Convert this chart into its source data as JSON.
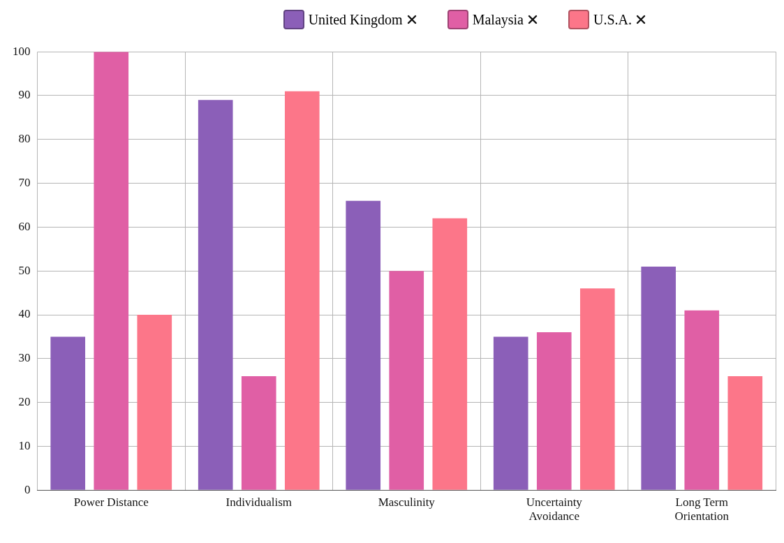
{
  "chart_data": {
    "type": "bar",
    "categories": [
      "Power Distance",
      "Individualism",
      "Masculinity",
      "Uncertainty Avoidance",
      "Long Term Orientation"
    ],
    "series": [
      {
        "name": "United Kingdom",
        "color": "#8b5fb8",
        "values": [
          35,
          89,
          66,
          35,
          51
        ]
      },
      {
        "name": "Malaysia",
        "color": "#e05fa5",
        "values": [
          100,
          26,
          50,
          36,
          41
        ]
      },
      {
        "name": "U.S.A.",
        "color": "#fc7689",
        "values": [
          40,
          91,
          62,
          46,
          26
        ]
      }
    ],
    "ylim": [
      0,
      100
    ],
    "yticks": [
      0,
      10,
      20,
      30,
      40,
      50,
      60,
      70,
      80,
      90,
      100
    ],
    "grid": true,
    "legend": "top right"
  }
}
